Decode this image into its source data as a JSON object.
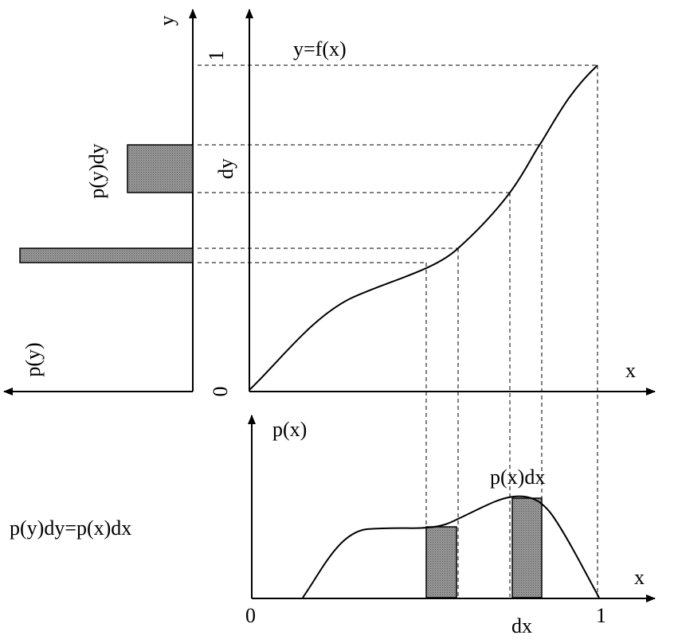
{
  "top_plot": {
    "y_axis_label": "y",
    "y_tick_one": "1",
    "curve_label": "y=f(x)",
    "dy_label": "dy",
    "x_axis_label": "x",
    "origin_label": "0"
  },
  "left_plot": {
    "bar_label": "p(y)dy",
    "axis_label": "p(y)"
  },
  "bottom_plot": {
    "axis_label": "p(x)",
    "bar_label": "p(x)dx",
    "x_axis_label": "x",
    "origin_label": "0",
    "x_tick_one": "1",
    "dx_label": "dx"
  },
  "equation": "p(y)dy=p(x)dx"
}
